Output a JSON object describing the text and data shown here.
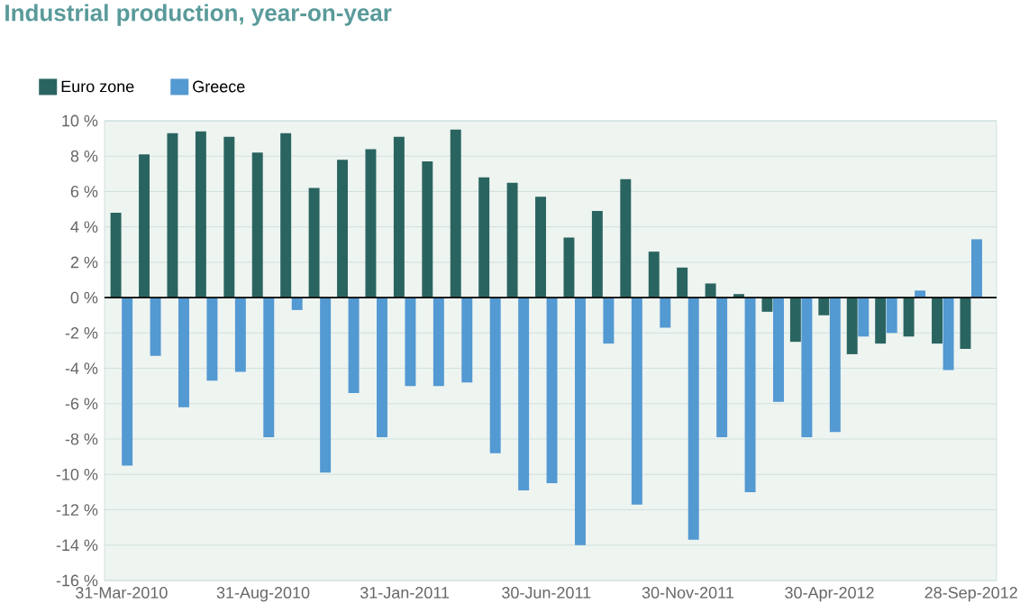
{
  "chart_data": {
    "type": "bar",
    "title": "Industrial production, year-on-year",
    "categories": [
      "31-Mar-2010",
      null,
      null,
      null,
      null,
      "31-Aug-2010",
      null,
      null,
      null,
      null,
      "31-Jan-2011",
      null,
      null,
      null,
      null,
      "30-Jun-2011",
      null,
      null,
      null,
      null,
      "30-Nov-2011",
      null,
      null,
      null,
      null,
      "30-Apr-2012",
      null,
      null,
      null,
      null,
      "28-Sep-2012"
    ],
    "series": [
      {
        "name": "Euro zone",
        "color": "#2a6460",
        "values": [
          4.8,
          8.1,
          9.3,
          9.4,
          9.1,
          8.2,
          9.3,
          6.2,
          7.8,
          8.4,
          9.1,
          7.7,
          9.5,
          6.8,
          6.5,
          5.7,
          3.4,
          4.9,
          6.7,
          2.6,
          1.7,
          0.8,
          0.2,
          -0.8,
          -2.5,
          -1.0,
          -3.2,
          -2.6,
          -2.2,
          -2.6,
          -2.9
        ]
      },
      {
        "name": "Greece",
        "color": "#5399d2",
        "values": [
          -9.5,
          -3.3,
          -6.2,
          -4.7,
          -4.2,
          -7.9,
          -0.7,
          -9.9,
          -5.4,
          -7.9,
          -5.0,
          -5.0,
          -4.8,
          -8.8,
          -10.9,
          -10.5,
          -14.0,
          -2.6,
          -11.7,
          -1.7,
          -13.7,
          -7.9,
          -11.0,
          -5.9,
          -7.9,
          -7.6,
          -2.2,
          -2.0,
          0.4,
          -4.1,
          3.3
        ]
      }
    ],
    "ylim": [
      -16,
      10
    ],
    "yticks": [
      {
        "value": -16,
        "label": "-16 %"
      },
      {
        "value": -14,
        "label": "-14 %"
      },
      {
        "value": -12,
        "label": "-12 %"
      },
      {
        "value": -10,
        "label": "-10 %"
      },
      {
        "value": -8,
        "label": "-8 %"
      },
      {
        "value": -6,
        "label": "-6 %"
      },
      {
        "value": -4,
        "label": "-4 %"
      },
      {
        "value": -2,
        "label": "-2 %"
      },
      {
        "value": 0,
        "label": "0 %"
      },
      {
        "value": 2,
        "label": "2 %"
      },
      {
        "value": 4,
        "label": "4 %"
      },
      {
        "value": 6,
        "label": "6 %"
      },
      {
        "value": 8,
        "label": "8 %"
      },
      {
        "value": 10,
        "label": "10 %"
      }
    ],
    "grid": "y",
    "legend": "top left"
  }
}
